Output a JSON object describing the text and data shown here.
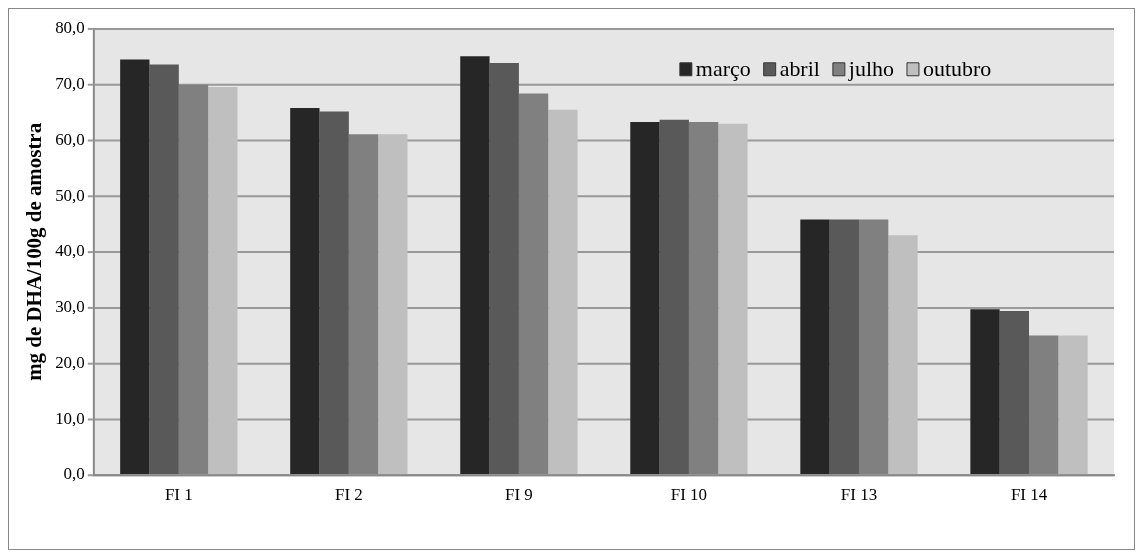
{
  "chart_data": {
    "type": "bar",
    "ylabel": "mg de DHA/100g de amostra",
    "categories": [
      "FI 1",
      "FI 2",
      "FI 9",
      "FI 10",
      "FI 13",
      "FI 14"
    ],
    "series": [
      {
        "name": "março",
        "color": "#262626",
        "values": [
          74.5,
          65.8,
          75.1,
          63.3,
          45.8,
          29.7
        ]
      },
      {
        "name": "abril",
        "color": "#595959",
        "values": [
          73.6,
          65.2,
          73.9,
          63.7,
          45.8,
          29.4
        ]
      },
      {
        "name": "julho",
        "color": "#808080",
        "values": [
          70.0,
          61.1,
          68.4,
          63.3,
          45.8,
          25.0
        ]
      },
      {
        "name": "outubro",
        "color": "#bfbfbf",
        "values": [
          69.6,
          61.1,
          65.5,
          63.0,
          43.0,
          25.0
        ]
      }
    ],
    "ylim": [
      0,
      80
    ],
    "yticks": [
      {
        "value": 0,
        "label": "0,0"
      },
      {
        "value": 10,
        "label": "10,0"
      },
      {
        "value": 20,
        "label": "20,0"
      },
      {
        "value": 30,
        "label": "30,0"
      },
      {
        "value": 40,
        "label": "40,0"
      },
      {
        "value": 50,
        "label": "50,0"
      },
      {
        "value": 60,
        "label": "60,0"
      },
      {
        "value": 70,
        "label": "70,0"
      },
      {
        "value": 80,
        "label": "80,0"
      }
    ],
    "grid": "y",
    "legend": "top right"
  }
}
